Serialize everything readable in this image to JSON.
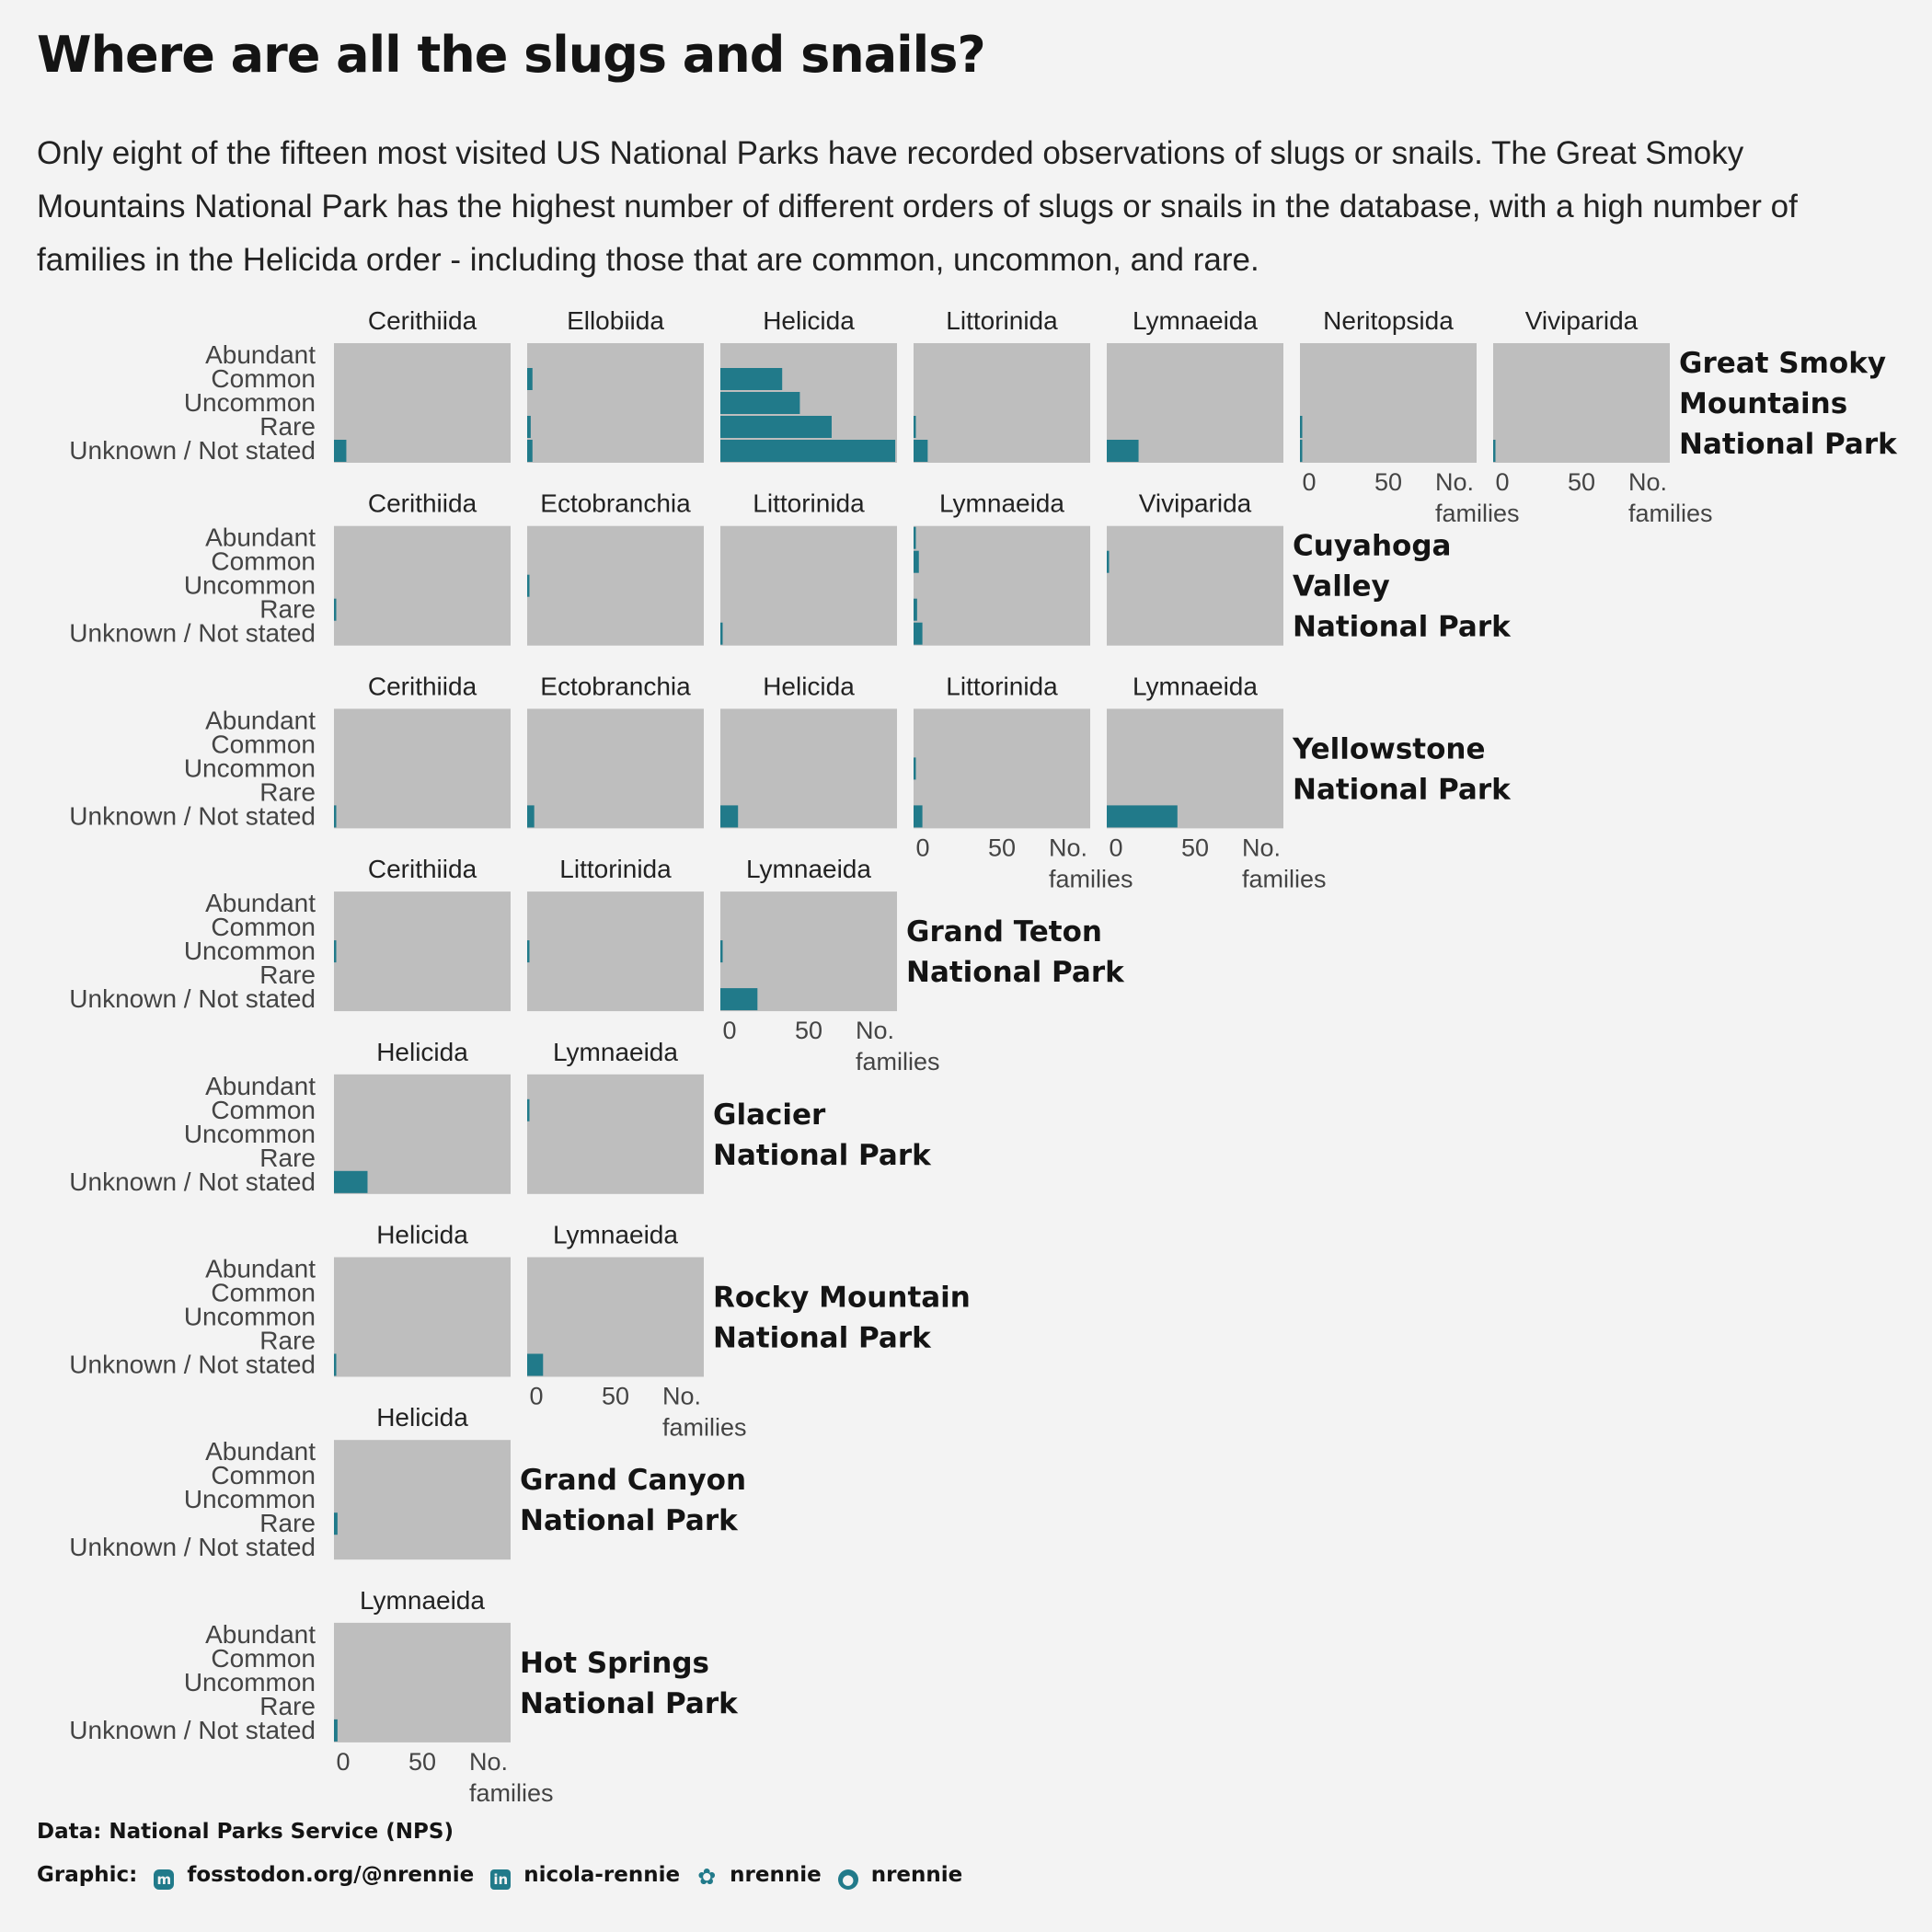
{
  "title": "Where are all the slugs and snails?",
  "subtitle": "Only eight of the fifteen most visited US National Parks have recorded observations of slugs or snails. The Great Smoky Mountains National Park has the highest number of different orders of slugs or snails in the database, with a high number of families in the Helicida order - including those that are common, uncommon, and rare.",
  "footer": {
    "data_credit": "Data: National Parks Service (NPS)",
    "graphic_label": "Graphic:",
    "mastodon": "fosstodon.org/@nrennie",
    "linkedin": "nicola-rennie",
    "bluesky": "nrennie",
    "github": "nrennie"
  },
  "colors": {
    "background": "#f3f3f3",
    "panel": "#bebebe",
    "bar": "#217a8a",
    "text": "#141414",
    "axis_text": "#444444"
  },
  "icons": [
    "mastodon-icon",
    "linkedin-icon",
    "bluesky-icon",
    "github-icon"
  ],
  "chart_data": {
    "type": "bar",
    "orientation": "horizontal",
    "facet_layout": "one row per park, one panel per order",
    "categories": [
      "Abundant",
      "Common",
      "Uncommon",
      "Rare",
      "Unknown / Not stated"
    ],
    "xlabel": "No. families",
    "x_ticks": [
      0,
      50
    ],
    "xlim": [
      0,
      100
    ],
    "grid": false,
    "legend": "none",
    "parks": [
      {
        "park": "Great Smoky Mountains National Park",
        "label_lines": [
          "Great Smoky",
          "Mountains",
          "National Park"
        ],
        "orders": [
          {
            "order": "Cerithiida",
            "values": [
              0,
              0,
              0,
              0,
              7
            ]
          },
          {
            "order": "Ellobiida",
            "values": [
              0,
              3,
              0,
              2,
              3
            ]
          },
          {
            "order": "Helicida",
            "values": [
              0,
              35,
              45,
              63,
              99
            ]
          },
          {
            "order": "Littorinida",
            "values": [
              0,
              0,
              0,
              1,
              8
            ]
          },
          {
            "order": "Lymnaeida",
            "values": [
              0,
              0,
              0,
              0,
              18
            ]
          },
          {
            "order": "Neritopsida",
            "values": [
              0,
              0,
              0,
              1,
              1
            ]
          },
          {
            "order": "Viviparida",
            "values": [
              0,
              0,
              0,
              0,
              1
            ]
          }
        ]
      },
      {
        "park": "Cuyahoga Valley National Park",
        "label_lines": [
          "Cuyahoga",
          "Valley",
          "National Park"
        ],
        "orders": [
          {
            "order": "Cerithiida",
            "values": [
              0,
              0,
              0,
              1,
              0
            ]
          },
          {
            "order": "Ectobranchia",
            "values": [
              0,
              0,
              1,
              0,
              0
            ]
          },
          {
            "order": "Littorinida",
            "values": [
              0,
              0,
              0,
              0,
              1
            ]
          },
          {
            "order": "Lymnaeida",
            "values": [
              1,
              3,
              0,
              2,
              5
            ]
          },
          {
            "order": "Viviparida",
            "values": [
              0,
              1,
              0,
              0,
              0
            ]
          }
        ]
      },
      {
        "park": "Yellowstone National Park",
        "label_lines": [
          "Yellowstone",
          "National Park"
        ],
        "orders": [
          {
            "order": "Cerithiida",
            "values": [
              0,
              0,
              0,
              0,
              1
            ]
          },
          {
            "order": "Ectobranchia",
            "values": [
              0,
              0,
              0,
              0,
              4
            ]
          },
          {
            "order": "Helicida",
            "values": [
              0,
              0,
              0,
              0,
              10
            ]
          },
          {
            "order": "Littorinida",
            "values": [
              0,
              0,
              1,
              0,
              5
            ]
          },
          {
            "order": "Lymnaeida",
            "values": [
              0,
              0,
              0,
              0,
              40
            ]
          }
        ]
      },
      {
        "park": "Grand Teton National Park",
        "label_lines": [
          "Grand Teton",
          "National Park"
        ],
        "orders": [
          {
            "order": "Cerithiida",
            "values": [
              0,
              0,
              1,
              0,
              0
            ]
          },
          {
            "order": "Littorinida",
            "values": [
              0,
              0,
              1,
              0,
              0
            ]
          },
          {
            "order": "Lymnaeida",
            "values": [
              0,
              0,
              1,
              0,
              21
            ]
          }
        ]
      },
      {
        "park": "Glacier National Park",
        "label_lines": [
          "Glacier",
          "National Park"
        ],
        "orders": [
          {
            "order": "Helicida",
            "values": [
              0,
              0,
              0,
              0,
              19
            ]
          },
          {
            "order": "Lymnaeida",
            "values": [
              0,
              1,
              0,
              0,
              0
            ]
          }
        ]
      },
      {
        "park": "Rocky Mountain National Park",
        "label_lines": [
          "Rocky Mountain",
          "National Park"
        ],
        "orders": [
          {
            "order": "Helicida",
            "values": [
              0,
              0,
              0,
              0,
              1
            ]
          },
          {
            "order": "Lymnaeida",
            "values": [
              0,
              0,
              0,
              0,
              9
            ]
          }
        ]
      },
      {
        "park": "Grand Canyon National Park",
        "label_lines": [
          "Grand Canyon",
          "National Park"
        ],
        "orders": [
          {
            "order": "Helicida",
            "values": [
              0,
              0,
              0,
              2,
              0
            ]
          }
        ]
      },
      {
        "park": "Hot Springs National Park",
        "label_lines": [
          "Hot Springs",
          "National Park"
        ],
        "orders": [
          {
            "order": "Lymnaeida",
            "values": [
              0,
              0,
              0,
              0,
              2
            ]
          }
        ]
      }
    ]
  }
}
